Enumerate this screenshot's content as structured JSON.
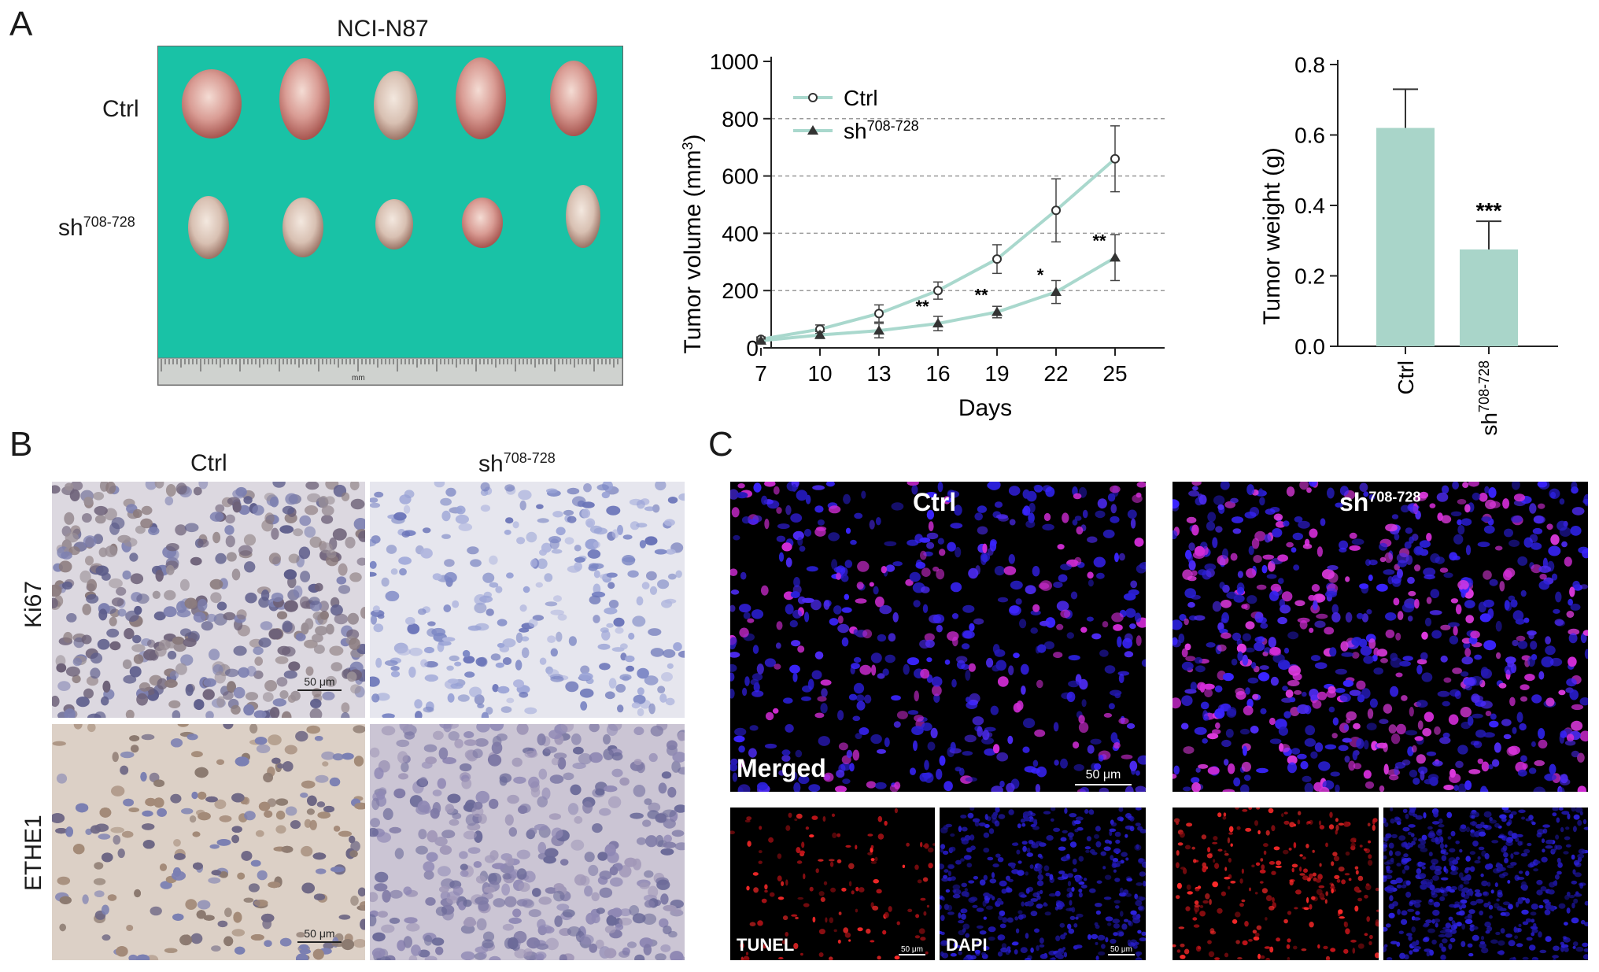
{
  "panels": {
    "a": "A",
    "b": "B",
    "c": "C"
  },
  "photo": {
    "title": "NCI-N87",
    "row_ctrl": "Ctrl",
    "row_sh_base": "sh",
    "row_sh_sup": "708-728",
    "ruler_unit": "mm",
    "background_color": "#19c2a6"
  },
  "chart_data": [
    {
      "type": "line",
      "xlabel": "Days",
      "ylabel_base": "Tumor volume (mm",
      "ylabel_sup": "3",
      "ylabel_end": ")",
      "x": [
        7,
        10,
        13,
        16,
        19,
        22,
        25
      ],
      "xticks": [
        "7",
        "10",
        "13",
        "16",
        "19",
        "22",
        "25"
      ],
      "ylim": [
        0,
        1000
      ],
      "yticks": [
        "0",
        "200",
        "400",
        "600",
        "800",
        "1000"
      ],
      "grid": "horizontal dashed",
      "legend_position": "top-left",
      "series": [
        {
          "name": "Ctrl",
          "marker": "open-circle",
          "values": [
            30,
            65,
            120,
            200,
            310,
            480,
            660
          ],
          "errors": [
            8,
            15,
            30,
            30,
            50,
            110,
            115
          ]
        },
        {
          "name_base": "sh",
          "name_sup": "708-728",
          "marker": "filled-triangle",
          "values": [
            25,
            45,
            60,
            85,
            125,
            195,
            315
          ],
          "errors": [
            6,
            12,
            25,
            25,
            20,
            40,
            80
          ],
          "significance": [
            "",
            "",
            "",
            "**",
            "**",
            "*",
            "**"
          ]
        }
      ],
      "line_color": "#a9d8cd"
    },
    {
      "type": "bar",
      "ylabel": "Tumor weight (g)",
      "ylim": [
        0,
        0.8
      ],
      "yticks": [
        "0.0",
        "0.2",
        "0.4",
        "0.6",
        "0.8"
      ],
      "categories": [
        "Ctrl",
        "sh"
      ],
      "category_sup": [
        "",
        "708-728"
      ],
      "values": [
        0.62,
        0.275
      ],
      "errors": [
        0.11,
        0.08
      ],
      "significance": [
        "",
        "***"
      ],
      "bar_color": "#a9d5c9"
    }
  ],
  "ihc": {
    "col_ctrl": "Ctrl",
    "col_sh_base": "sh",
    "col_sh_sup": "708-728",
    "row_ki67": "Ki67",
    "row_ethe1": "ETHE1",
    "scale": "50 μm"
  },
  "tunel": {
    "ctrl": "Ctrl",
    "sh_base": "sh",
    "sh_sup": "708-728",
    "merged": "Merged",
    "tunel": "TUNEL",
    "dapi": "DAPI",
    "scale": "50 μm"
  }
}
